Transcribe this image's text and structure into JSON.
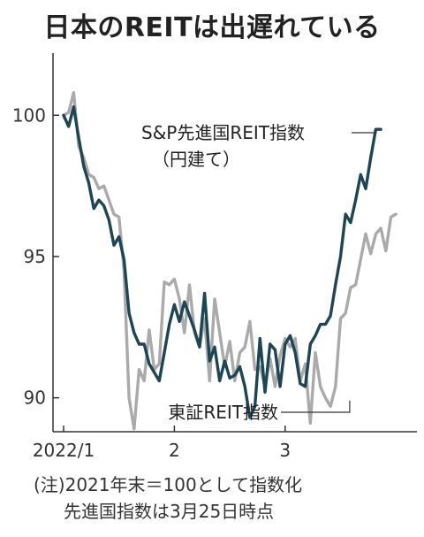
{
  "chart_data": {
    "type": "line",
    "title": "日本のREITは出遅れている",
    "ylim": [
      88.8,
      102.2
    ],
    "yticks": [
      90,
      95,
      100
    ],
    "xticks": [
      {
        "label": "2022/1",
        "x": 0
      },
      {
        "label": "2",
        "x": 22
      },
      {
        "label": "3",
        "x": 44
      }
    ],
    "series": [
      {
        "name": "S&P先進国REIT指数",
        "name_note": "（円建て）",
        "color": "#1d4654",
        "x": [
          0,
          1,
          2,
          3,
          4,
          5,
          6,
          7,
          8,
          9,
          10,
          11,
          12,
          13,
          14,
          15,
          16,
          17,
          18,
          19,
          20,
          21,
          22,
          23,
          24,
          25,
          26,
          27,
          28,
          29,
          30,
          31,
          32,
          33,
          34,
          35,
          36,
          37,
          38,
          39,
          40,
          41,
          42,
          43,
          44,
          45,
          46,
          47,
          48,
          49,
          50,
          51,
          52,
          53,
          54,
          55,
          56,
          57,
          58,
          59,
          60,
          61,
          62,
          63
        ],
        "values": [
          100.0,
          99.6,
          100.3,
          99.2,
          98.2,
          97.6,
          96.7,
          97.0,
          96.8,
          96.3,
          95.4,
          95.7,
          94.9,
          93.0,
          92.3,
          91.9,
          91.9,
          91.2,
          90.9,
          90.6,
          91.6,
          92.6,
          93.3,
          92.7,
          93.4,
          92.9,
          92.4,
          91.8,
          93.7,
          91.3,
          91.8,
          90.6,
          91.3,
          90.7,
          90.8,
          91.1,
          90.4,
          89.3,
          89.7,
          92.1,
          90.2,
          91.9,
          91.7,
          90.4,
          91.9,
          92.2,
          91.6,
          90.5,
          90.4,
          91.9,
          92.2,
          92.6,
          92.6,
          92.9,
          94.0,
          95.0,
          96.5,
          96.2,
          97.0,
          97.9,
          97.4,
          98.5,
          99.5,
          99.5
        ]
      },
      {
        "name": "東証REIT指数",
        "color": "#aaaaaa",
        "x": [
          0,
          1,
          2,
          3,
          4,
          5,
          6,
          7,
          8,
          9,
          10,
          11,
          12,
          13,
          14,
          15,
          16,
          17,
          18,
          19,
          20,
          21,
          22,
          23,
          24,
          25,
          26,
          27,
          28,
          29,
          30,
          31,
          32,
          33,
          34,
          35,
          36,
          37,
          38,
          39,
          40,
          41,
          42,
          43,
          44,
          45,
          46,
          47,
          48,
          49,
          50,
          51,
          52,
          53,
          54,
          55,
          56,
          57,
          58,
          59,
          60,
          61,
          62,
          63,
          64,
          65,
          66
        ],
        "values": [
          100.0,
          100.1,
          100.8,
          98.9,
          98.5,
          97.9,
          97.8,
          97.4,
          97.5,
          97.0,
          96.5,
          96.4,
          94.5,
          90.0,
          88.9,
          91.0,
          90.6,
          92.4,
          91.0,
          91.2,
          94.1,
          94.0,
          94.2,
          93.5,
          92.3,
          94.0,
          92.3,
          91.8,
          92.8,
          90.6,
          93.5,
          92.3,
          91.1,
          92.0,
          90.6,
          91.6,
          91.8,
          92.7,
          91.0,
          91.1,
          90.4,
          91.4,
          90.4,
          91.5,
          92.1,
          91.8,
          92.1,
          90.6,
          91.2,
          89.1,
          91.6,
          90.4,
          90.0,
          89.7,
          90.4,
          92.8,
          93.0,
          93.9,
          94.0,
          94.9,
          95.8,
          95.1,
          95.8,
          96.0,
          95.2,
          96.4,
          96.5
        ]
      }
    ]
  },
  "labels": {
    "sp_line1": "S&P先進国REIT指数",
    "sp_line2": "（円建て）",
    "tse": "東証REIT指数"
  },
  "notes": {
    "line1": "(注)2021年末＝100として指数化",
    "line2": "先進国指数は3月25日時点"
  }
}
